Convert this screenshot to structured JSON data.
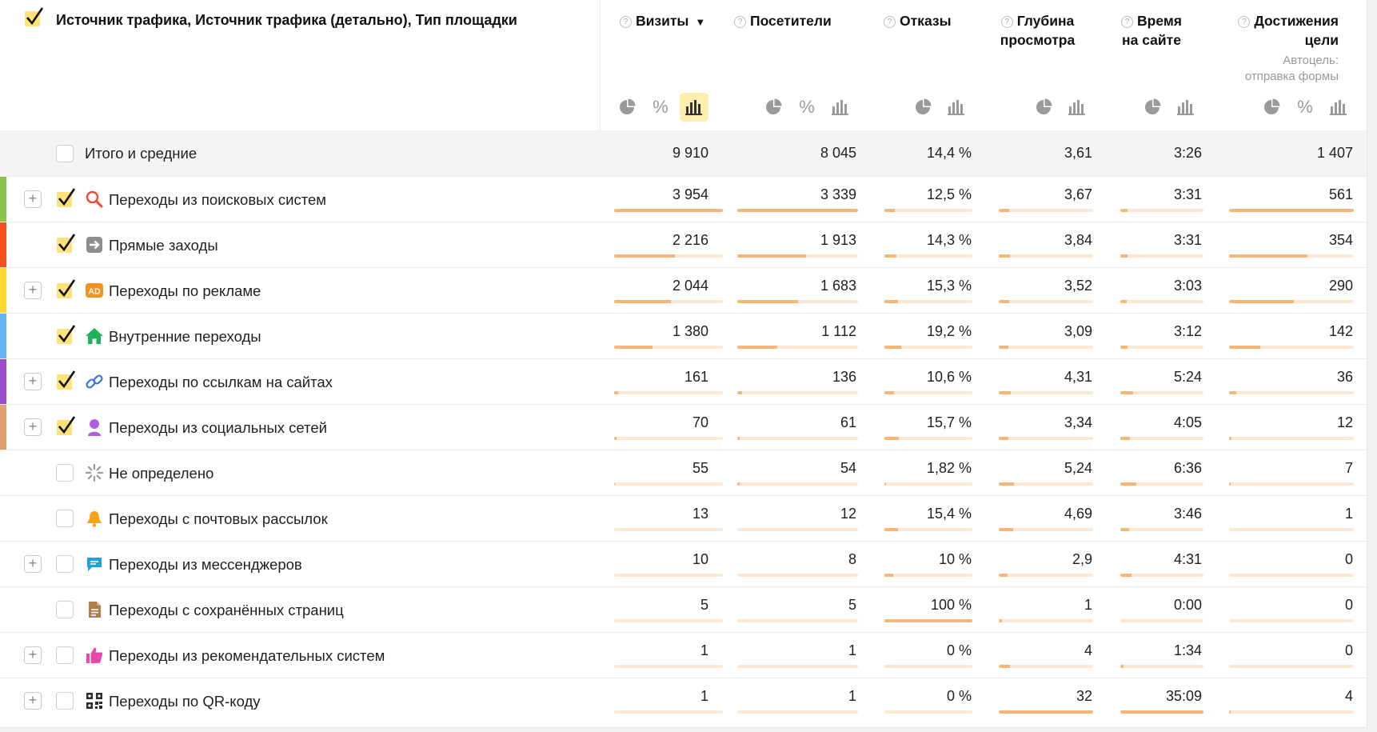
{
  "header": {
    "dimensions_title": "Источник трафика, Источник трафика (детально), Тип площадки",
    "metrics": {
      "visits": "Визиты",
      "visits_sort": "▼",
      "users": "Посетители",
      "bounce": "Отказы",
      "depth_1": "Глубина",
      "depth_2": "просмотра",
      "time_1": "Время",
      "time_2": "на сайте",
      "goal_1": "Достижения",
      "goal_2": "цели",
      "goal_sub_1": "Автоцель:",
      "goal_sub_2": "отправка формы"
    },
    "help_glyph": "?",
    "percent_glyph": "%"
  },
  "total": {
    "label": "Итого и средние",
    "visits": "9 910",
    "users": "8 045",
    "bounce": "14,4 %",
    "depth": "3,61",
    "time": "3:26",
    "goal": "1 407"
  },
  "rows": [
    {
      "label": "Переходы из поисковых систем",
      "color": "#8bc34a",
      "icon": "search-icon",
      "expandable": true,
      "checked": true,
      "visits": "3 954",
      "users": "3 339",
      "bounce": "12,5 %",
      "depth": "3,67",
      "time": "3:31",
      "goal": "561",
      "fill": {
        "visits": 1.0,
        "users": 1.0,
        "bounce": 0.12,
        "depth": 0.11,
        "time": 0.09,
        "goal": 1.0
      }
    },
    {
      "label": "Прямые заходы",
      "color": "#f4511e",
      "icon": "direct-arrow-icon",
      "expandable": false,
      "checked": true,
      "visits": "2 216",
      "users": "1 913",
      "bounce": "14,3 %",
      "depth": "3,84",
      "time": "3:31",
      "goal": "354",
      "fill": {
        "visits": 0.56,
        "users": 0.57,
        "bounce": 0.14,
        "depth": 0.12,
        "time": 0.09,
        "goal": 0.63
      }
    },
    {
      "label": "Переходы по рекламе",
      "color": "#fdd835",
      "icon": "ad-icon",
      "expandable": true,
      "checked": true,
      "visits": "2 044",
      "users": "1 683",
      "bounce": "15,3 %",
      "depth": "3,52",
      "time": "3:03",
      "goal": "290",
      "fill": {
        "visits": 0.52,
        "users": 0.5,
        "bounce": 0.15,
        "depth": 0.11,
        "time": 0.08,
        "goal": 0.52
      }
    },
    {
      "label": "Внутренние переходы",
      "color": "#64b5f6",
      "icon": "home-icon",
      "expandable": false,
      "checked": true,
      "visits": "1 380",
      "users": "1 112",
      "bounce": "19,2 %",
      "depth": "3,09",
      "time": "3:12",
      "goal": "142",
      "fill": {
        "visits": 0.35,
        "users": 0.33,
        "bounce": 0.19,
        "depth": 0.1,
        "time": 0.09,
        "goal": 0.25
      }
    },
    {
      "label": "Переходы по ссылкам на сайтах",
      "color": "#9c4dcc",
      "icon": "link-icon",
      "expandable": true,
      "checked": true,
      "visits": "161",
      "users": "136",
      "bounce": "10,6 %",
      "depth": "4,31",
      "time": "5:24",
      "goal": "36",
      "fill": {
        "visits": 0.04,
        "users": 0.04,
        "bounce": 0.11,
        "depth": 0.13,
        "time": 0.15,
        "goal": 0.06
      }
    },
    {
      "label": "Переходы из социальных сетей",
      "color": "#e0a070",
      "icon": "social-user-icon",
      "expandable": true,
      "checked": true,
      "visits": "70",
      "users": "61",
      "bounce": "15,7 %",
      "depth": "3,34",
      "time": "4:05",
      "goal": "12",
      "fill": {
        "visits": 0.02,
        "users": 0.02,
        "bounce": 0.16,
        "depth": 0.1,
        "time": 0.12,
        "goal": 0.02
      }
    },
    {
      "label": "Не определено",
      "color": "",
      "icon": "loading-spinner-icon",
      "expandable": false,
      "checked": false,
      "visits": "55",
      "users": "54",
      "bounce": "1,82 %",
      "depth": "5,24",
      "time": "6:36",
      "goal": "7",
      "fill": {
        "visits": 0.01,
        "users": 0.02,
        "bounce": 0.02,
        "depth": 0.16,
        "time": 0.19,
        "goal": 0.01
      }
    },
    {
      "label": "Переходы с почтовых рассылок",
      "color": "",
      "icon": "bell-icon",
      "expandable": false,
      "checked": false,
      "visits": "13",
      "users": "12",
      "bounce": "15,4 %",
      "depth": "4,69",
      "time": "3:46",
      "goal": "1",
      "fill": {
        "visits": 0.0,
        "users": 0.0,
        "bounce": 0.15,
        "depth": 0.15,
        "time": 0.11,
        "goal": 0.0
      }
    },
    {
      "label": "Переходы из мессенджеров",
      "color": "",
      "icon": "chat-bubble-icon",
      "expandable": true,
      "checked": false,
      "visits": "10",
      "users": "8",
      "bounce": "10 %",
      "depth": "2,9",
      "time": "4:31",
      "goal": "0",
      "fill": {
        "visits": 0.0,
        "users": 0.0,
        "bounce": 0.1,
        "depth": 0.09,
        "time": 0.13,
        "goal": 0.0
      }
    },
    {
      "label": "Переходы с сохранённых страниц",
      "color": "",
      "icon": "saved-page-icon",
      "expandable": false,
      "checked": false,
      "visits": "5",
      "users": "5",
      "bounce": "100 %",
      "depth": "1",
      "time": "0:00",
      "goal": "0",
      "fill": {
        "visits": 0.0,
        "users": 0.0,
        "bounce": 1.0,
        "depth": 0.03,
        "time": 0.0,
        "goal": 0.0
      }
    },
    {
      "label": "Переходы из рекомендательных систем",
      "color": "",
      "icon": "thumbs-up-icon",
      "expandable": true,
      "checked": false,
      "visits": "1",
      "users": "1",
      "bounce": "0 %",
      "depth": "4",
      "time": "1:34",
      "goal": "0",
      "fill": {
        "visits": 0.0,
        "users": 0.0,
        "bounce": 0.0,
        "depth": 0.12,
        "time": 0.04,
        "goal": 0.0
      }
    },
    {
      "label": "Переходы по QR-коду",
      "color": "",
      "icon": "qr-code-icon",
      "expandable": true,
      "checked": false,
      "visits": "1",
      "users": "1",
      "bounce": "0 %",
      "depth": "32",
      "time": "35:09",
      "goal": "4",
      "fill": {
        "visits": 0.0,
        "users": 0.0,
        "bounce": 0.0,
        "depth": 1.0,
        "time": 1.0,
        "goal": 0.01
      }
    }
  ],
  "colors": {
    "bar_fill": "#f8b578",
    "bar_track": "#fde8d4",
    "check_bg": "#ffe27a",
    "active_button": "#ffeeb0"
  }
}
